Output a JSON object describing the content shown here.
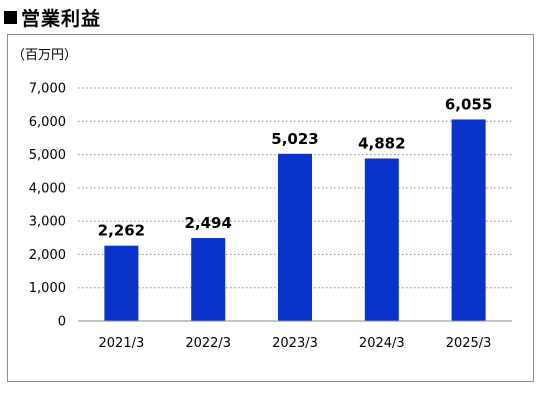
{
  "title": "営業利益",
  "unit": "（百万円）",
  "colors": {
    "bar": "#0a33c9",
    "grid": "#8a8a8a"
  },
  "chart_data": {
    "type": "bar",
    "title": "営業利益",
    "ylabel": "（百万円）",
    "xlabel": "",
    "categories": [
      "2021/3",
      "2022/3",
      "2023/3",
      "2024/3",
      "2025/3"
    ],
    "values": [
      2262,
      2494,
      5023,
      4882,
      6055
    ],
    "data_labels": [
      "2,262",
      "2,494",
      "5,023",
      "4,882",
      "6,055"
    ],
    "ylim": [
      0,
      7000
    ],
    "yticks": [
      0,
      1000,
      2000,
      3000,
      4000,
      5000,
      6000,
      7000
    ],
    "ytick_labels": [
      "0",
      "1,000",
      "2,000",
      "3,000",
      "4,000",
      "5,000",
      "6,000",
      "7,000"
    ],
    "grid": true,
    "grid_style": "dotted",
    "legend": "none"
  }
}
